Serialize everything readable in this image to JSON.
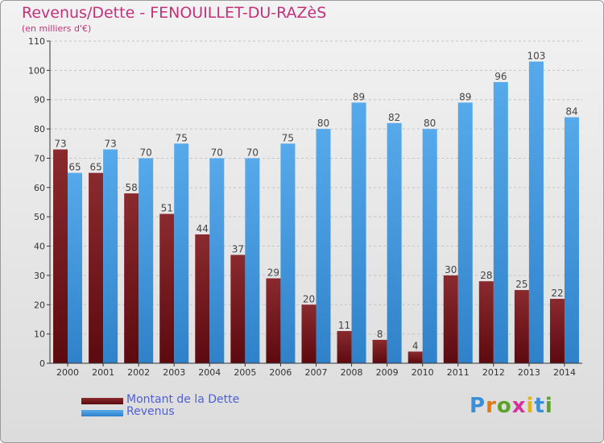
{
  "header": {
    "title": "Revenus/Dette - FENOUILLET-DU-RAZèS",
    "subtitle": "(en milliers d'€)"
  },
  "colors": {
    "title": "#c4317b",
    "dette": "#7a1f24",
    "revenus": "#3f97de",
    "legend_text": "#4f5fd6"
  },
  "logo": {
    "text": "Proxiti"
  },
  "chart_data": {
    "type": "bar",
    "title": "Revenus/Dette - FENOUILLET-DU-RAZèS",
    "subtitle": "(en milliers d'€)",
    "categories": [
      "2000",
      "2001",
      "2002",
      "2003",
      "2004",
      "2005",
      "2006",
      "2007",
      "2008",
      "2009",
      "2010",
      "2011",
      "2012",
      "2013",
      "2014"
    ],
    "series": [
      {
        "name": "Montant de la Dette",
        "values": [
          73,
          65,
          58,
          51,
          44,
          37,
          29,
          20,
          11,
          8,
          4,
          30,
          28,
          25,
          22
        ]
      },
      {
        "name": "Revenus",
        "values": [
          65,
          73,
          70,
          75,
          70,
          70,
          75,
          80,
          89,
          82,
          80,
          89,
          96,
          103,
          84
        ]
      }
    ],
    "ylim": [
      0,
      110
    ],
    "yticks": [
      0,
      10,
      20,
      30,
      40,
      50,
      60,
      70,
      80,
      90,
      100,
      110
    ],
    "grid": true,
    "legend_position": "bottom-left"
  }
}
